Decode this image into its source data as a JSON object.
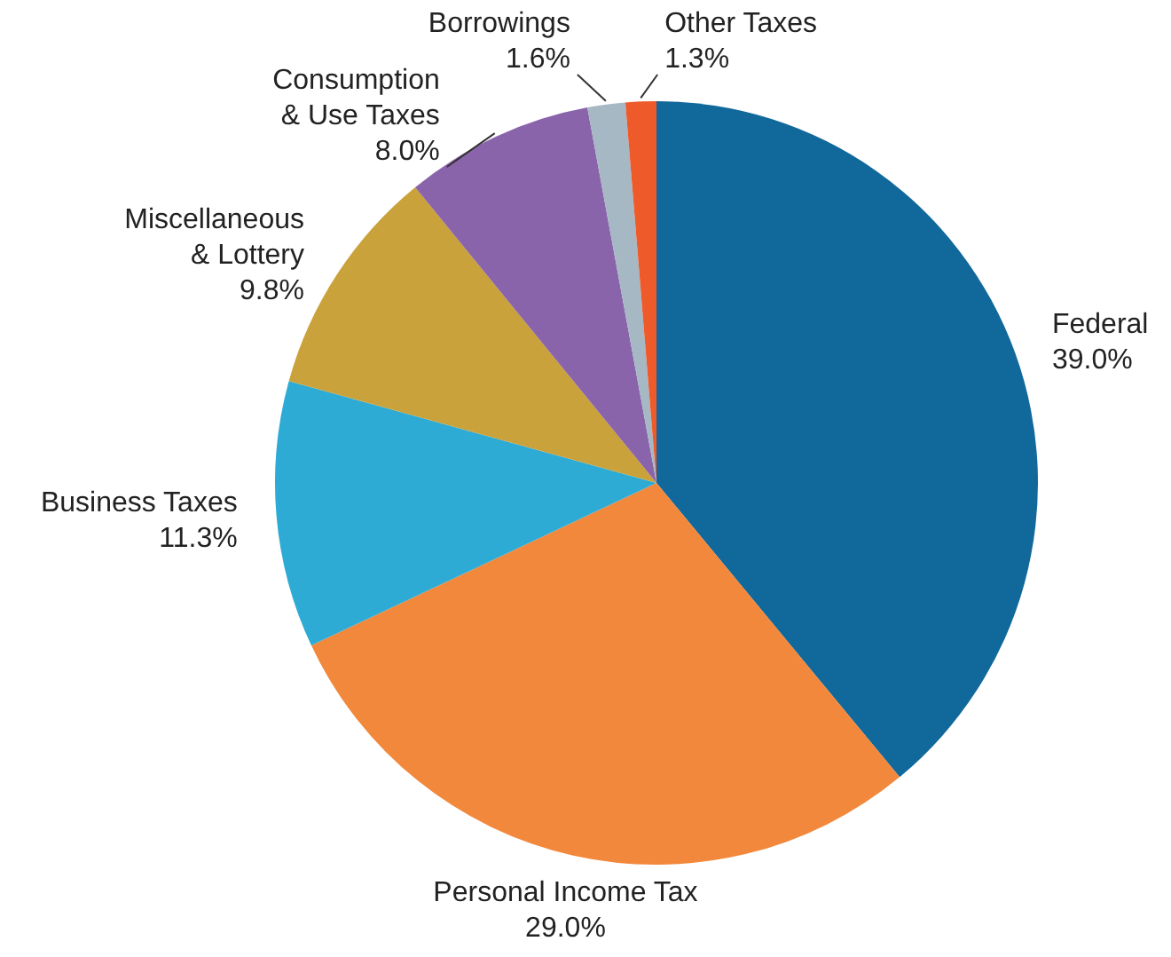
{
  "chart_data": {
    "type": "pie",
    "categories": [
      "Federal",
      "Personal Income Tax",
      "Business Taxes",
      "Miscellaneous & Lottery",
      "Consumption & Use Taxes",
      "Borrowings",
      "Other Taxes"
    ],
    "values": [
      39.0,
      29.0,
      11.3,
      9.8,
      8.0,
      1.6,
      1.3
    ],
    "value_labels": [
      "39.0%",
      "29.0%",
      "11.3%",
      "9.8%",
      "8.0%",
      "1.6%",
      "1.3%"
    ],
    "colors": [
      "#10689b",
      "#f2883b",
      "#2eabd5",
      "#c9a23b",
      "#8a64aa",
      "#a5b8c4",
      "#ef5a2a"
    ],
    "legend": false
  }
}
